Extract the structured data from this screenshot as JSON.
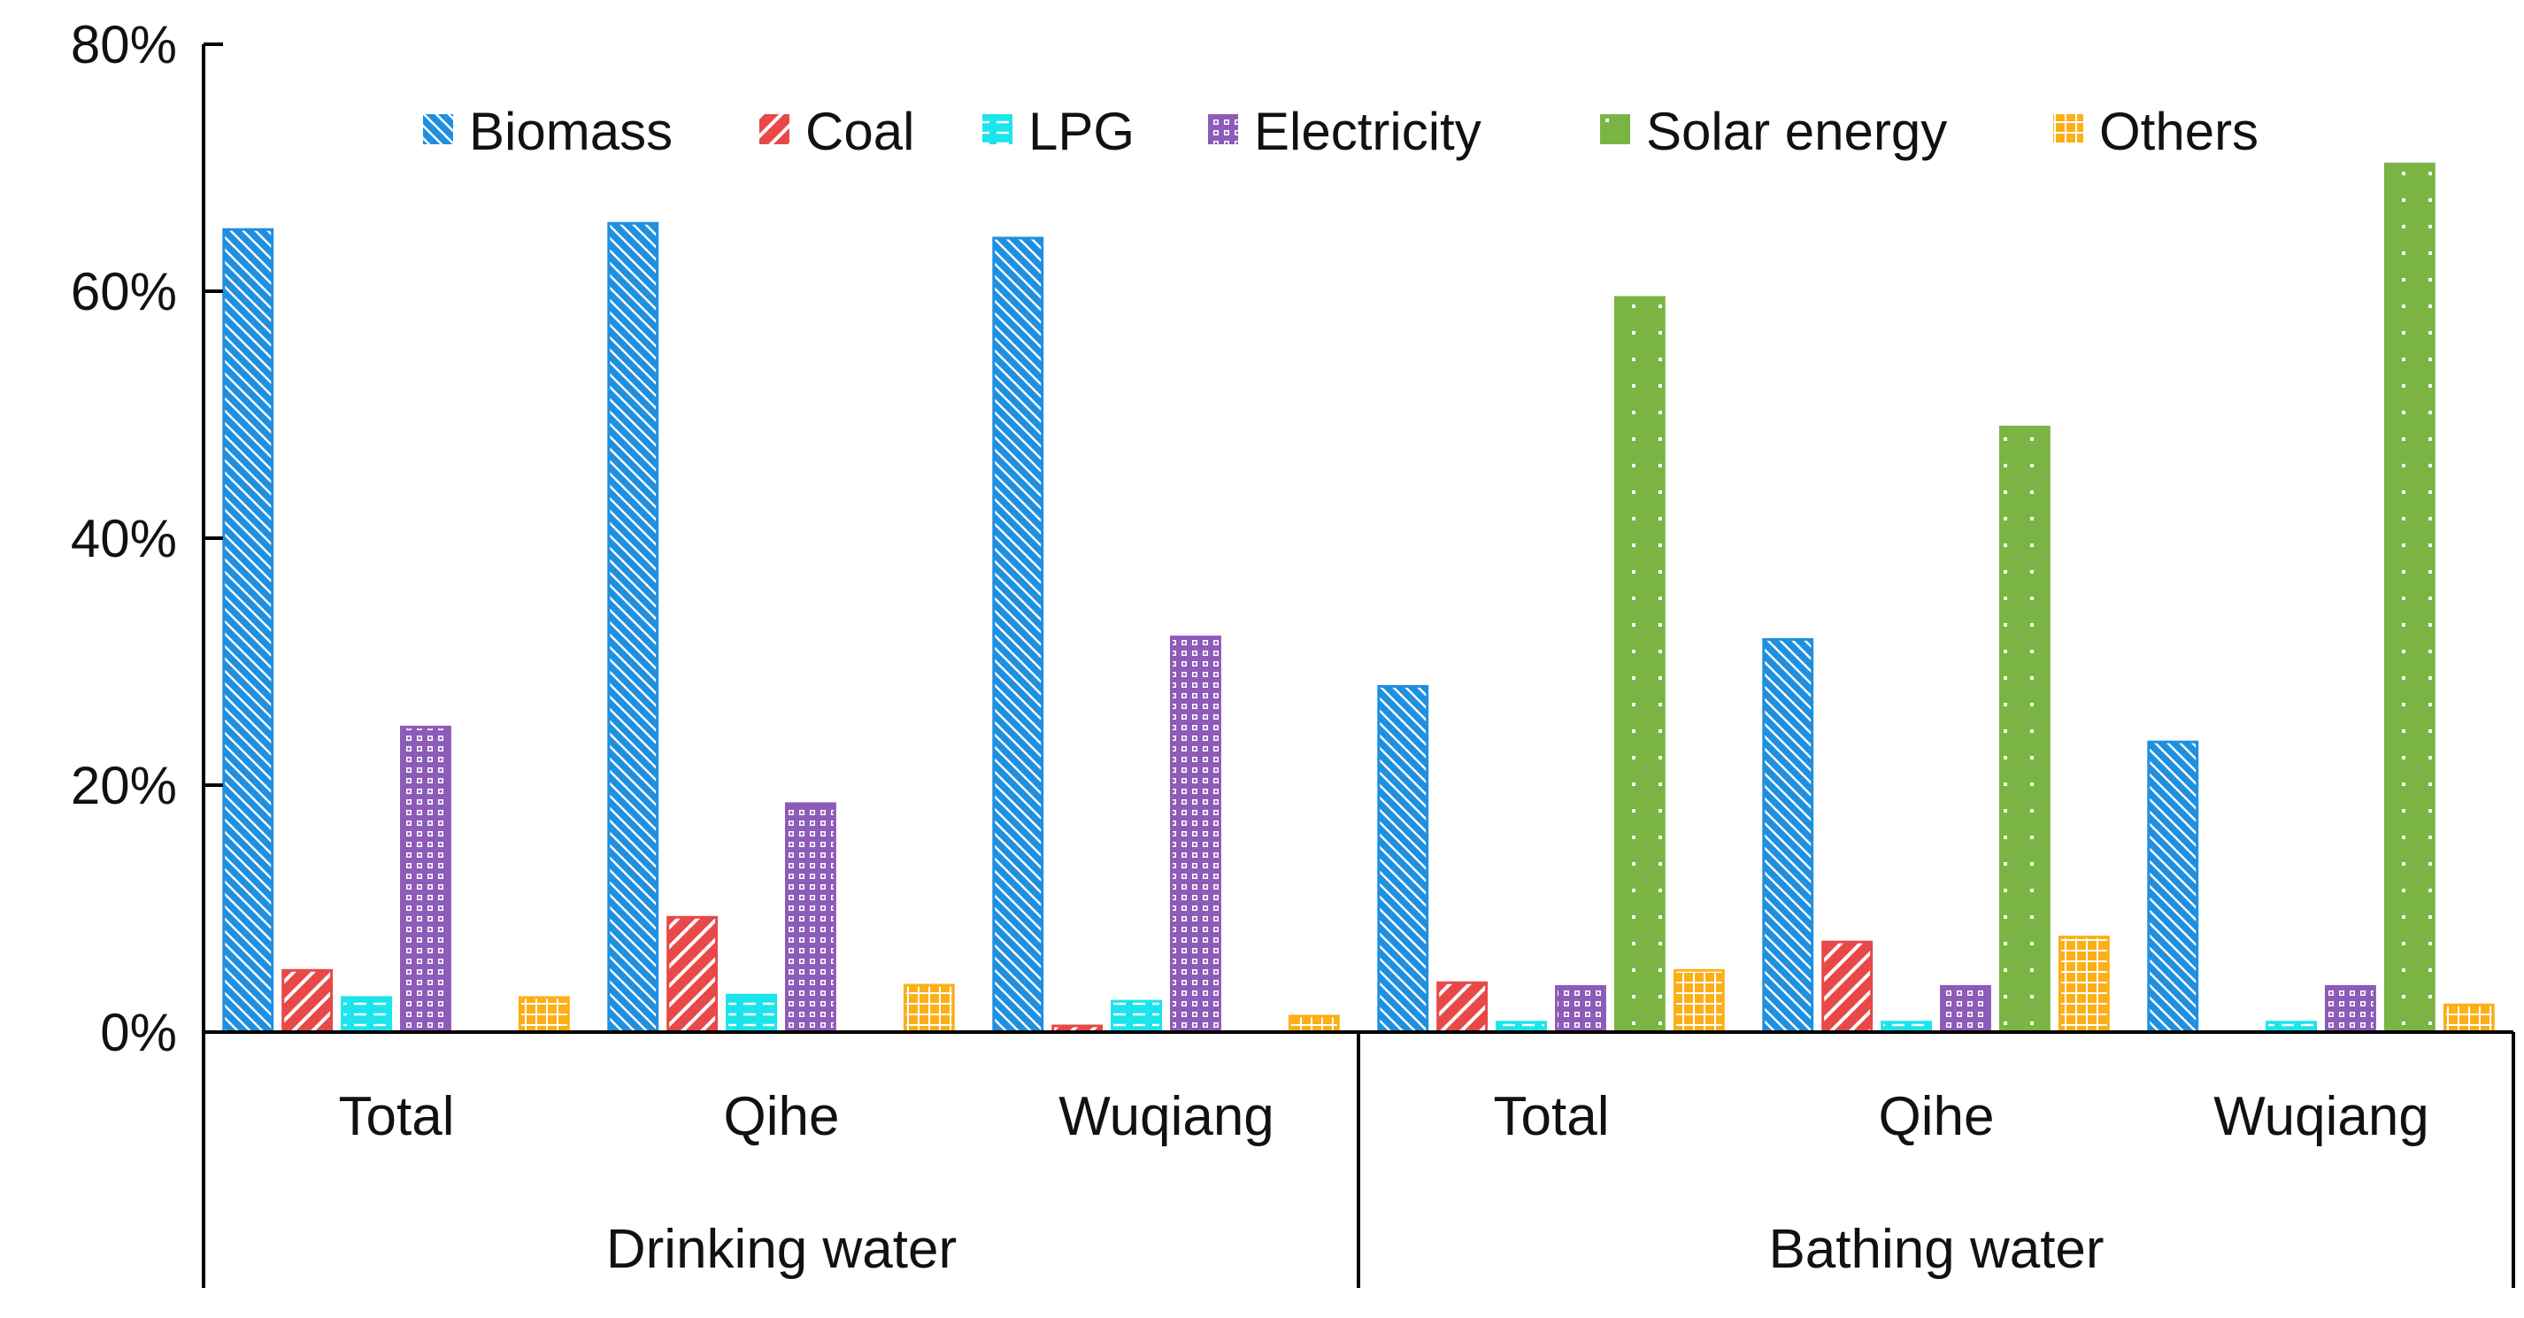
{
  "chart_data": {
    "type": "bar",
    "title": "",
    "xlabel": "",
    "ylabel": "",
    "ylim": [
      0,
      80
    ],
    "y_ticks": [
      "0%",
      "20%",
      "40%",
      "60%",
      "80%"
    ],
    "y_tick_values": [
      0,
      20,
      40,
      60,
      80
    ],
    "legend_position": "top",
    "groups": [
      {
        "name": "Drinking water",
        "categories": [
          "Total",
          "Qihe",
          "Wuqiang"
        ]
      },
      {
        "name": "Bathing water",
        "categories": [
          "Total",
          "Qihe",
          "Wuqiang"
        ]
      }
    ],
    "categories": [
      "Total",
      "Qihe",
      "Wuqiang",
      "Total",
      "Qihe",
      "Wuqiang"
    ],
    "series": [
      {
        "name": "Biomass",
        "color": "#1F8FE0",
        "pattern": "diagonal-hatch",
        "values": [
          65.0,
          65.5,
          64.3,
          28.0,
          31.8,
          23.5
        ]
      },
      {
        "name": "Coal",
        "color": "#E84848",
        "pattern": "wide-diagonal-hatch",
        "values": [
          5.0,
          9.3,
          0.5,
          4.0,
          7.3,
          0.0
        ]
      },
      {
        "name": "LPG",
        "color": "#1CE4EC",
        "pattern": "horizontal-dash",
        "values": [
          2.8,
          3.0,
          2.5,
          0.8,
          0.8,
          0.8
        ]
      },
      {
        "name": "Electricity",
        "color": "#8D5BB8",
        "pattern": "lattice",
        "values": [
          24.7,
          18.5,
          32.0,
          3.7,
          3.7,
          3.7
        ]
      },
      {
        "name": "Solar energy",
        "color": "#7AB445",
        "pattern": "dotted",
        "values": [
          0.0,
          0.0,
          0.0,
          59.5,
          49.0,
          70.3
        ]
      },
      {
        "name": "Others",
        "color": "#FCAF17",
        "pattern": "grid",
        "values": [
          2.8,
          3.8,
          1.3,
          5.0,
          7.7,
          2.2
        ]
      }
    ]
  }
}
